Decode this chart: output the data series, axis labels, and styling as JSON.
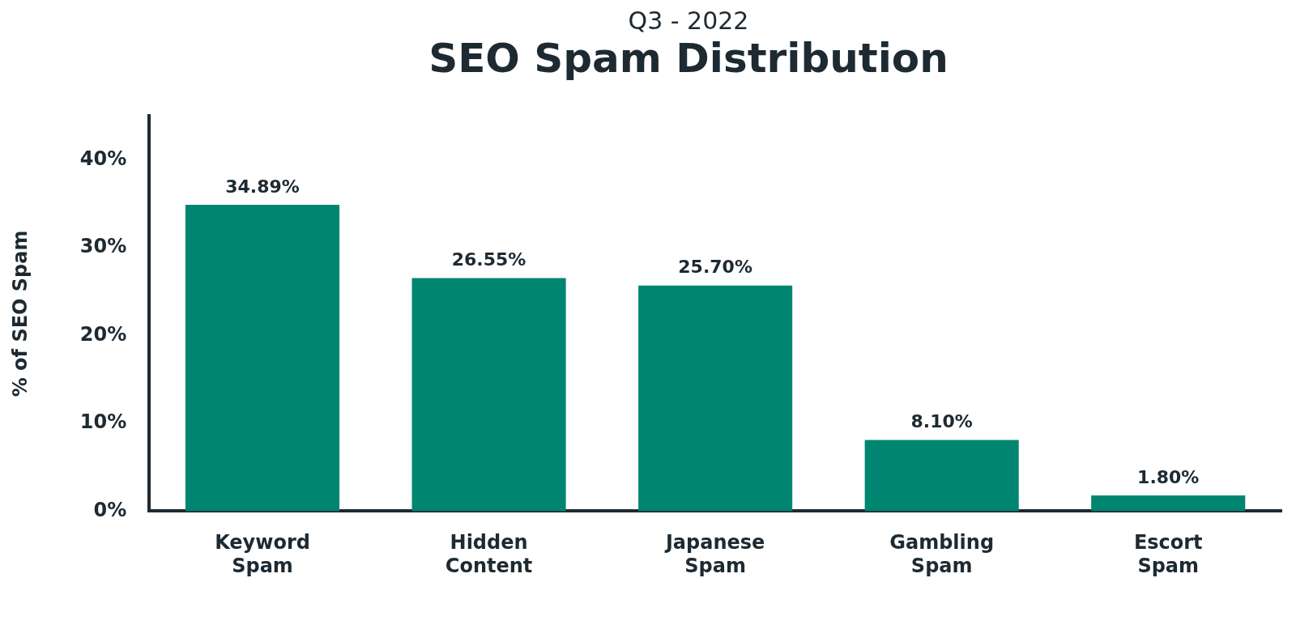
{
  "chart_data": {
    "type": "bar",
    "subtitle": "Q3 - 2022",
    "title": "SEO Spam Distribution",
    "ylabel": "% of SEO Spam",
    "categories": [
      "Keyword Spam",
      "Hidden Content",
      "Japanese Spam",
      "Gambling Spam",
      "Escort Spam"
    ],
    "values": [
      34.89,
      26.55,
      25.7,
      8.1,
      1.8
    ],
    "value_labels": [
      "34.89%",
      "26.55%",
      "25.70%",
      "8.10%",
      "1.80%"
    ],
    "color": "#008571",
    "ylim": [
      0,
      45
    ],
    "yticks": [
      {
        "value": 0,
        "label": "0%"
      },
      {
        "value": 10,
        "label": "10%"
      },
      {
        "value": 20,
        "label": "20%"
      },
      {
        "value": 30,
        "label": "30%"
      },
      {
        "value": 40,
        "label": "40%"
      }
    ],
    "grid": false,
    "legend": false
  }
}
